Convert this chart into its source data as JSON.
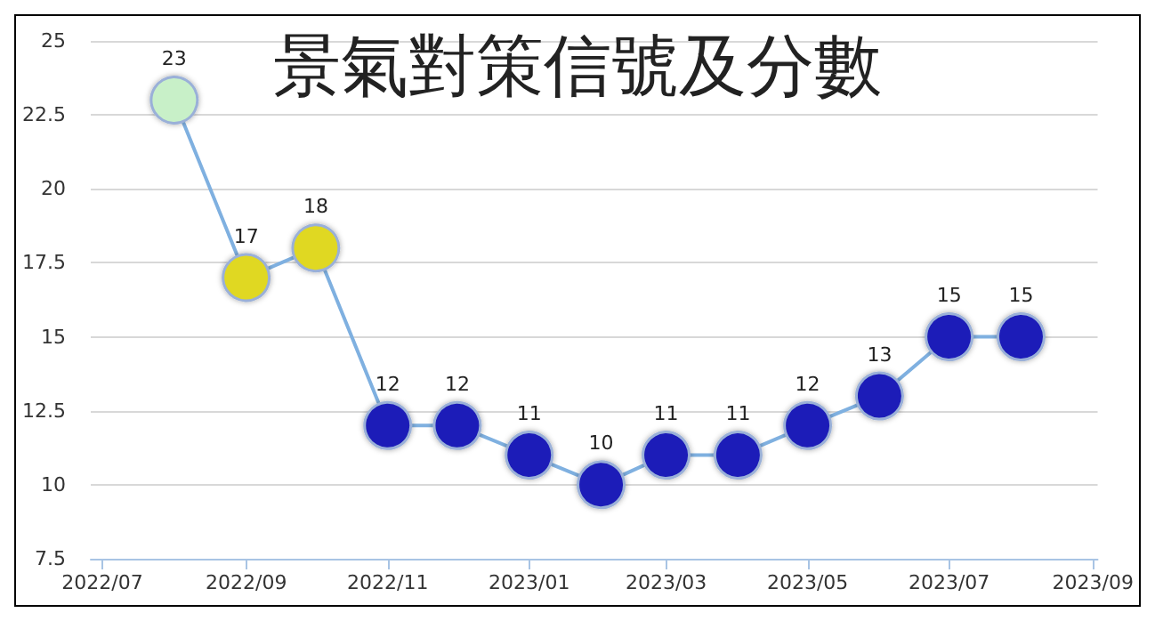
{
  "chart_data": {
    "type": "line",
    "title": "景氣對策信號及分數",
    "x": [
      "2022-08",
      "2022-09",
      "2022-10",
      "2022-11",
      "2022-12",
      "2023-01",
      "2023-02",
      "2023-03",
      "2023-04",
      "2023-05",
      "2023-06",
      "2023-07",
      "2023-08"
    ],
    "series": [
      {
        "color": "#7fb0e0",
        "values": [
          23,
          17,
          18,
          12,
          12,
          11,
          10,
          11,
          11,
          12,
          13,
          15,
          15
        ],
        "colors": [
          "#c8f0c8",
          "#e0d820",
          "#e0d820",
          "#1a1ab8",
          "#1a1ab8",
          "#1a1ab8",
          "#1a1ab8",
          "#1a1ab8",
          "#1a1ab8",
          "#1a1ab8",
          "#1a1ab8",
          "#1a1ab8",
          "#1a1ab8"
        ]
      }
    ],
    "xlim": [
      "2022-06-26",
      "2023-09-03"
    ],
    "xticks": [
      {
        "value": "2022-07",
        "label": "2022/07"
      },
      {
        "value": "2022-09",
        "label": "2022/09"
      },
      {
        "value": "2022-11",
        "label": "2022/11"
      },
      {
        "value": "2023-01",
        "label": "2023/01"
      },
      {
        "value": "2023-03",
        "label": "2023/03"
      },
      {
        "value": "2023-05",
        "label": "2023/05"
      },
      {
        "value": "2023-07",
        "label": "2023/07"
      },
      {
        "value": "2023-09",
        "label": "2023/09"
      }
    ],
    "ylim": [
      7.5,
      25
    ],
    "yticks": [
      7.5,
      10,
      12.5,
      15,
      17.5,
      20,
      22.5,
      25
    ],
    "grid": "y",
    "marker": "circle",
    "line_style": "solid",
    "data_labels": true
  }
}
